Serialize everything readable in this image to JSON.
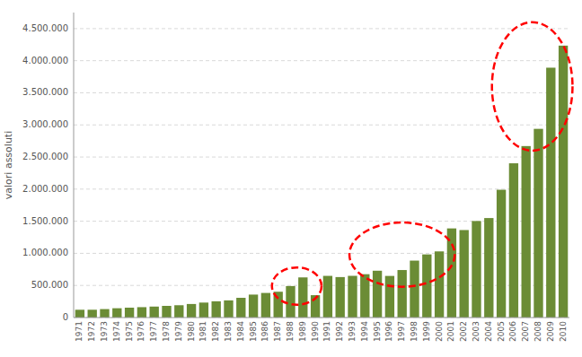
{
  "chart_data": {
    "type": "bar",
    "categories": [
      "1971",
      "1972",
      "1973",
      "1974",
      "1975",
      "1976",
      "1977",
      "1978",
      "1979",
      "1980",
      "1981",
      "1982",
      "1983",
      "1984",
      "1985",
      "1986",
      "1987",
      "1988",
      "1989",
      "1990",
      "1991",
      "1992",
      "1993",
      "1994",
      "1995",
      "1996",
      "1997",
      "1998",
      "1999",
      "2000",
      "2001",
      "2002",
      "2003",
      "2004",
      "2005",
      "2006",
      "2007",
      "2008",
      "2009",
      "2010"
    ],
    "values": [
      121118,
      121406,
      131567,
      144839,
      153746,
      161517,
      170622,
      181682,
      191580,
      210937,
      232936,
      252898,
      267415,
      307062,
      357264,
      383029,
      401825,
      490388,
      625034,
      348000,
      648935,
      630218,
      649458,
      674998,
      729159,
      648000,
      739727,
      886570,
      983065,
      1030000,
      1388153,
      1362630,
      1503286,
      1549373,
      1990159,
      2402157,
      2670514,
      2938922,
      3891295,
      4235059
    ],
    "color": "#6b8c35",
    "ylabel": "valori assoluti",
    "ylim": [
      0,
      4750000
    ],
    "yticks": [
      0,
      {
        "value": 500000,
        "label": "500.000"
      },
      {
        "value": 1000000,
        "label": "1.000.000"
      },
      {
        "value": 1500000,
        "label": "1.500.000"
      },
      {
        "value": 2000000,
        "label": "2.000.000"
      },
      {
        "value": 2500000,
        "label": "2.500.000"
      },
      {
        "value": 3000000,
        "label": "3.000.000"
      },
      {
        "value": 3500000,
        "label": "3.500.000"
      },
      {
        "value": 4000000,
        "label": "4.000.000"
      },
      {
        "value": 4500000,
        "label": "4.500.000"
      }
    ],
    "grid": true
  }
}
